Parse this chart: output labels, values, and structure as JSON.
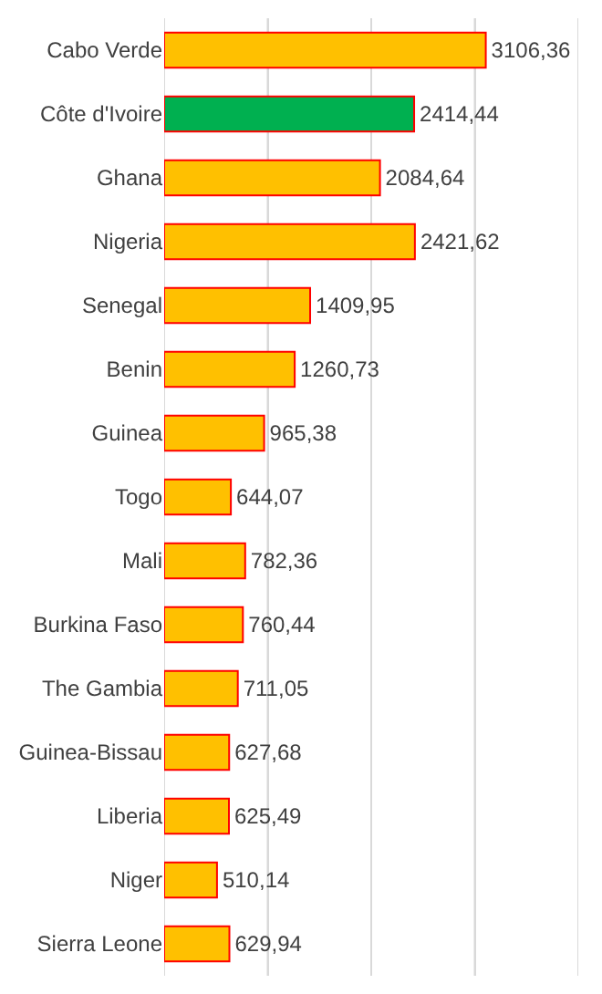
{
  "chart_data": {
    "type": "bar",
    "orientation": "horizontal",
    "categories": [
      "Cabo Verde",
      "Côte d'Ivoire",
      "Ghana",
      "Nigeria",
      "Senegal",
      "Benin",
      "Guinea",
      "Togo",
      "Mali",
      "Burkina Faso",
      "The Gambia",
      "Guinea-Bissau",
      "Liberia",
      "Niger",
      "Sierra Leone"
    ],
    "values": [
      3106.36,
      2414.44,
      2084.64,
      2421.62,
      1409.95,
      1260.73,
      965.38,
      644.07,
      782.36,
      760.44,
      711.05,
      627.68,
      625.49,
      510.14,
      629.94
    ],
    "value_labels": [
      "3106,36",
      "2414,44",
      "2084,64",
      "2421,62",
      "1409,95",
      "1260,73",
      "965,38",
      "644,07",
      "782,36",
      "760,44",
      "711,05",
      "627,68",
      "625,49",
      "510,14",
      "629,94"
    ],
    "colors": [
      "#ffc000",
      "#00b050",
      "#ffc000",
      "#ffc000",
      "#ffc000",
      "#ffc000",
      "#ffc000",
      "#ffc000",
      "#ffc000",
      "#ffc000",
      "#ffc000",
      "#ffc000",
      "#ffc000",
      "#ffc000",
      "#ffc000"
    ],
    "xlim": [
      0,
      4000
    ],
    "xticks": [
      {
        "value": 0,
        "label": null
      },
      {
        "value": 1000,
        "label": null
      },
      {
        "value": 2000,
        "label": null
      },
      {
        "value": 3000,
        "label": null
      },
      {
        "value": 4000,
        "label": null
      }
    ],
    "grid": "x",
    "tick_labels": "y",
    "legend": false
  }
}
